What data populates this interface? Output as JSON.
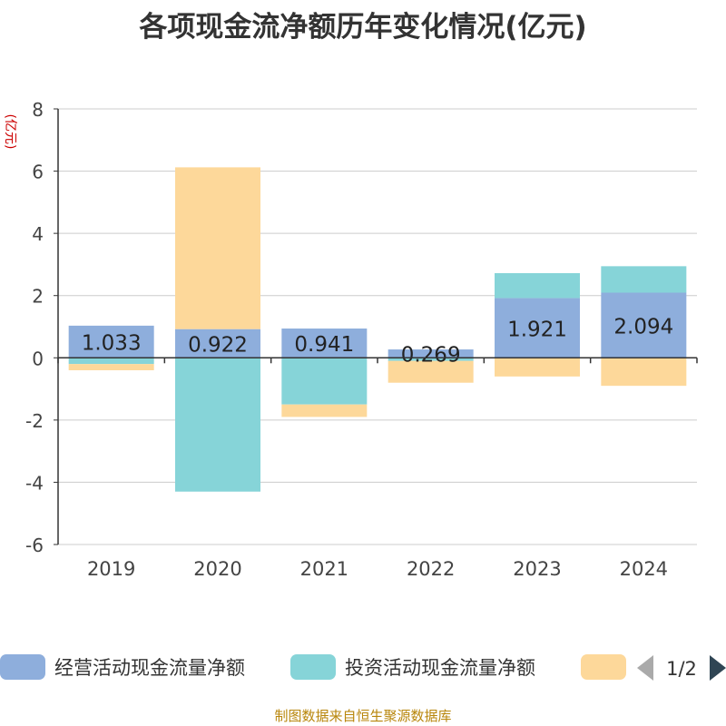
{
  "title": "各项现金流净额历年变化情况(亿元)",
  "source": "制图数据来自恒生聚源数据库",
  "chart_data": {
    "type": "bar",
    "stacked": true,
    "categories": [
      "2019",
      "2020",
      "2021",
      "2022",
      "2023",
      "2024"
    ],
    "ylabel": "(亿元)",
    "ylim": [
      -6,
      8
    ],
    "yticks": [
      8,
      6,
      4,
      2,
      0,
      -2,
      -4,
      -6
    ],
    "grid": true,
    "series": [
      {
        "name": "经营活动现金流量净额",
        "color": "#8eaedc",
        "values": [
          1.033,
          0.922,
          0.941,
          0.269,
          1.921,
          2.094
        ],
        "labels": [
          "1.033",
          "0.922",
          "0.941",
          "0.269",
          "1.921",
          "2.094"
        ]
      },
      {
        "name": "投资活动现金流量净额",
        "color": "#86d4d8",
        "values": [
          -0.2,
          -4.3,
          -1.5,
          -0.1,
          0.8,
          0.85
        ]
      },
      {
        "name": "",
        "color": "#fdd89a",
        "values": [
          -0.2,
          5.2,
          -0.4,
          -0.7,
          -0.6,
          -0.9
        ]
      }
    ],
    "legend": {
      "position": "bottom",
      "page": "1/2"
    }
  }
}
